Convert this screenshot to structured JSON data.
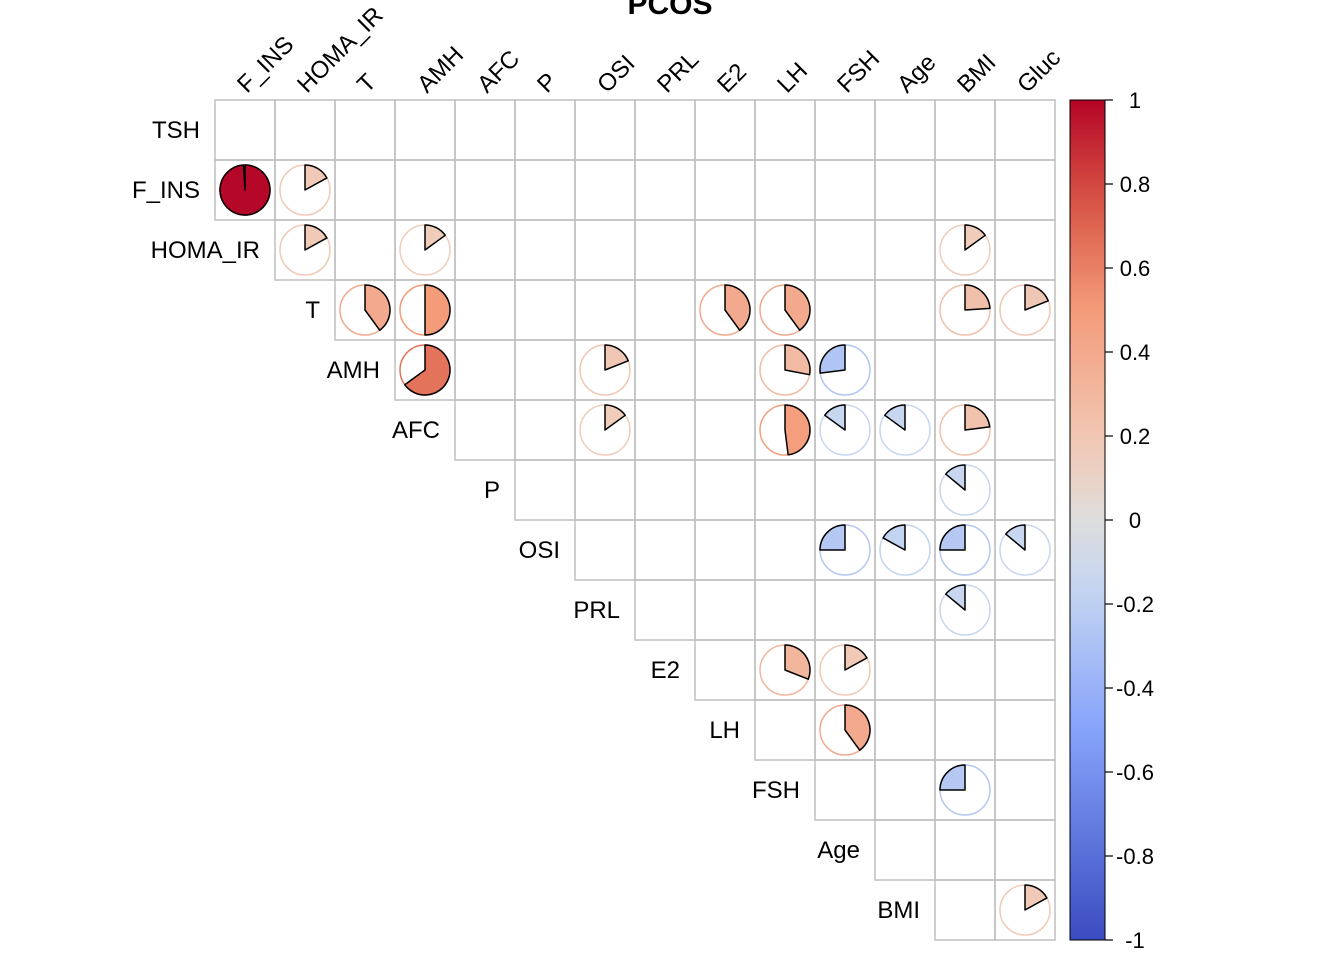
{
  "chart_data": {
    "type": "heatmap",
    "subtype": "correlation-pie-upper-triangle",
    "title": "PCOS",
    "row_labels": [
      "TSH",
      "F_INS",
      "HOMA_IR",
      "T",
      "AMH",
      "AFC",
      "P",
      "OSI",
      "PRL",
      "E2",
      "LH",
      "FSH",
      "Age",
      "BMI"
    ],
    "col_labels": [
      "F_INS",
      "HOMA_IR",
      "T",
      "AMH",
      "AFC",
      "P",
      "OSI",
      "PRL",
      "E2",
      "LH",
      "FSH",
      "Age",
      "BMI",
      "Gluc"
    ],
    "cells": [
      {
        "row": "F_INS",
        "col": "F_INS",
        "r": 0.99
      },
      {
        "row": "F_INS",
        "col": "HOMA_IR",
        "r": 0.17
      },
      {
        "row": "HOMA_IR",
        "col": "HOMA_IR",
        "r": 0.17
      },
      {
        "row": "HOMA_IR",
        "col": "AMH",
        "r": 0.15
      },
      {
        "row": "HOMA_IR",
        "col": "BMI",
        "r": 0.15
      },
      {
        "row": "T",
        "col": "T",
        "r": 0.4
      },
      {
        "row": "T",
        "col": "AMH",
        "r": 0.5
      },
      {
        "row": "T",
        "col": "E2",
        "r": 0.4
      },
      {
        "row": "T",
        "col": "LH",
        "r": 0.4
      },
      {
        "row": "T",
        "col": "BMI",
        "r": 0.24
      },
      {
        "row": "T",
        "col": "Gluc",
        "r": 0.19
      },
      {
        "row": "AMH",
        "col": "AMH",
        "r": 0.65
      },
      {
        "row": "AMH",
        "col": "OSI",
        "r": 0.19
      },
      {
        "row": "AMH",
        "col": "LH",
        "r": 0.28
      },
      {
        "row": "AMH",
        "col": "FSH",
        "r": -0.27
      },
      {
        "row": "AFC",
        "col": "OSI",
        "r": 0.15
      },
      {
        "row": "AFC",
        "col": "LH",
        "r": 0.48
      },
      {
        "row": "AFC",
        "col": "FSH",
        "r": -0.15
      },
      {
        "row": "AFC",
        "col": "Age",
        "r": -0.15
      },
      {
        "row": "AFC",
        "col": "BMI",
        "r": 0.23
      },
      {
        "row": "P",
        "col": "BMI",
        "r": -0.14
      },
      {
        "row": "OSI",
        "col": "FSH",
        "r": -0.25
      },
      {
        "row": "OSI",
        "col": "Age",
        "r": -0.17
      },
      {
        "row": "OSI",
        "col": "BMI",
        "r": -0.25
      },
      {
        "row": "OSI",
        "col": "Gluc",
        "r": -0.14
      },
      {
        "row": "PRL",
        "col": "BMI",
        "r": -0.14
      },
      {
        "row": "E2",
        "col": "LH",
        "r": 0.31
      },
      {
        "row": "E2",
        "col": "FSH",
        "r": 0.17
      },
      {
        "row": "LH",
        "col": "FSH",
        "r": 0.4
      },
      {
        "row": "FSH",
        "col": "BMI",
        "r": -0.25
      },
      {
        "row": "BMI",
        "col": "Gluc",
        "r": 0.17
      }
    ],
    "colorbar": {
      "ticks": [
        "1",
        "0.8",
        "0.6",
        "0.4",
        "0.2",
        "0",
        "-0.2",
        "-0.4",
        "-0.6",
        "-0.8",
        "-1"
      ],
      "range": [
        -1,
        1
      ],
      "palette": [
        "#053061",
        "#3B4CC0",
        "#6F92F3",
        "#AAC7FD",
        "#DDDDDD",
        "#F7B89C",
        "#E7745B",
        "#B40426",
        "#67001F"
      ]
    },
    "grid": true
  }
}
